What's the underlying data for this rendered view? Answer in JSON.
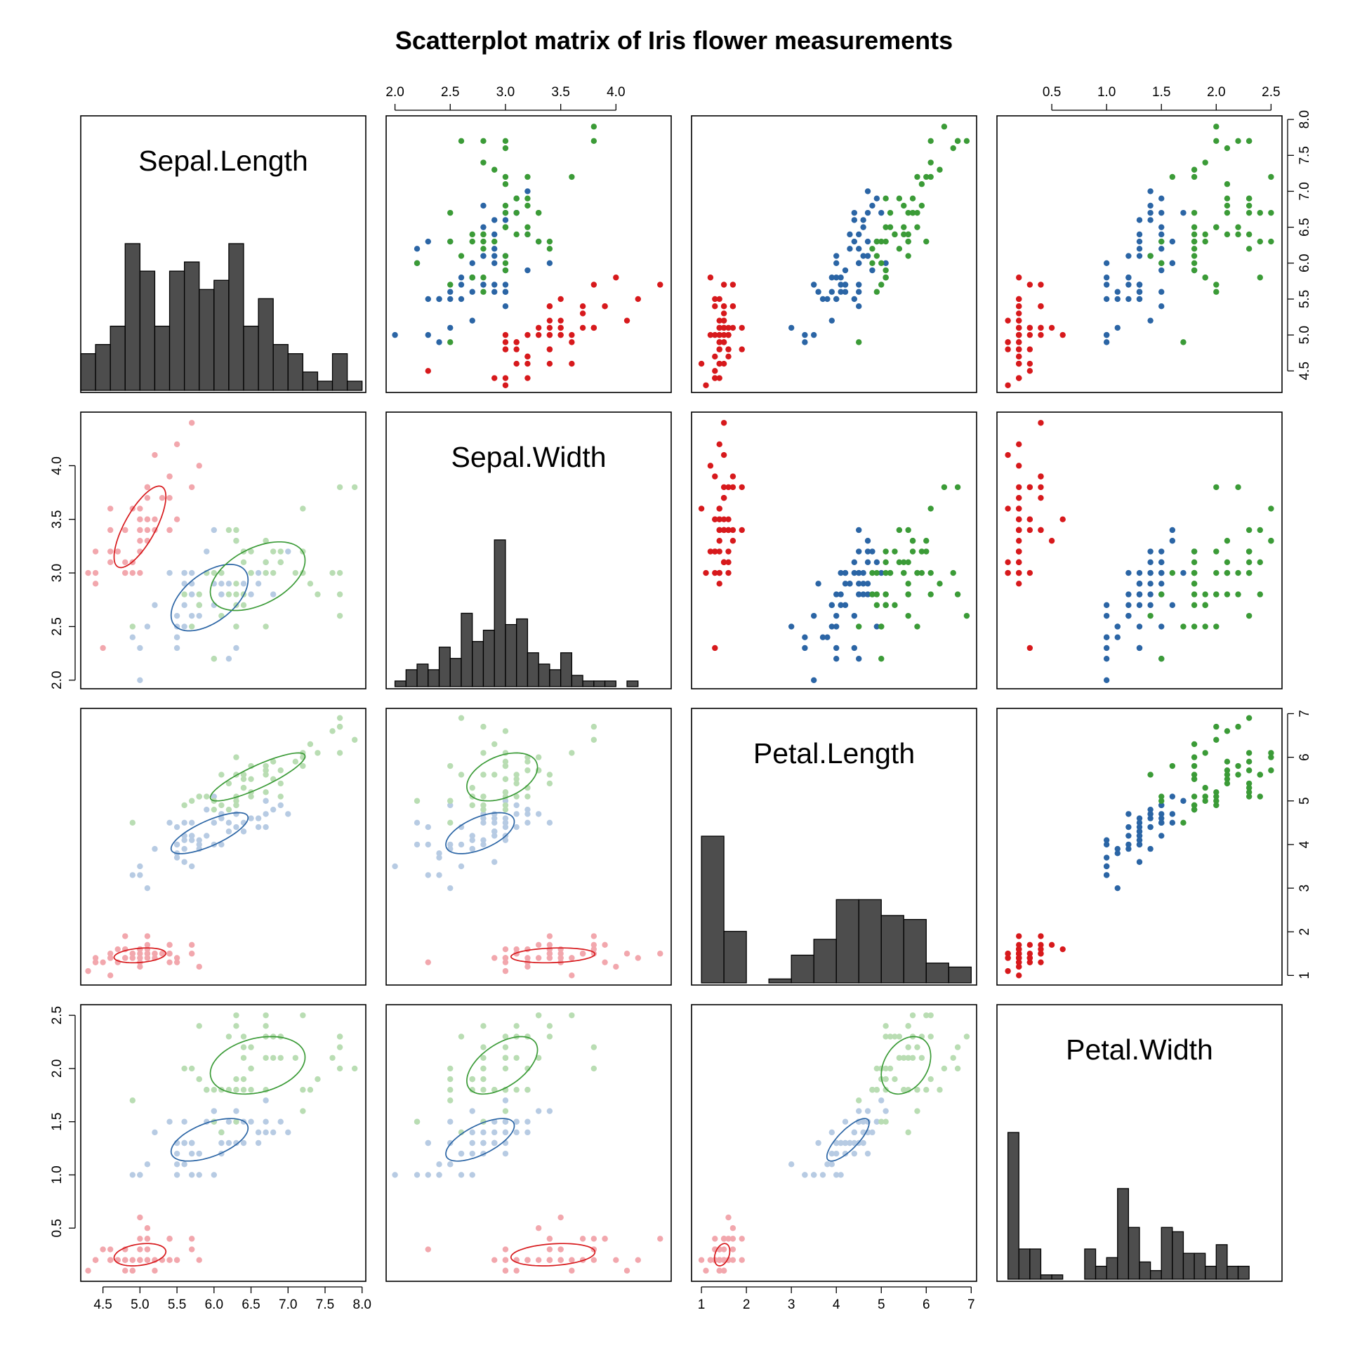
{
  "chart_data": {
    "type": "scatter",
    "title": "Scatterplot matrix of Iris flower measurements",
    "layout": "scatterplot-matrix 4x4: histograms on diagonal, colored scatter above diagonal, faded points with 68% ellipses below diagonal",
    "variables": [
      {
        "name": "Sepal.Length",
        "range": [
          4.2,
          8.05
        ],
        "ticks": [
          4.5,
          5.0,
          5.5,
          6.0,
          6.5,
          7.0,
          7.5,
          8.0
        ],
        "tick_labels": [
          "4.5",
          "5.0",
          "5.5",
          "6.0",
          "6.5",
          "7.0",
          "7.5",
          "8.0"
        ]
      },
      {
        "name": "Sepal.Width",
        "range": [
          1.92,
          4.5
        ],
        "ticks": [
          2.0,
          2.5,
          3.0,
          3.5,
          4.0
        ],
        "tick_labels": [
          "2.0",
          "2.5",
          "3.0",
          "3.5",
          "4.0"
        ]
      },
      {
        "name": "Petal.Length",
        "range": [
          0.78,
          7.12
        ],
        "ticks": [
          1,
          2,
          3,
          4,
          5,
          6,
          7
        ],
        "tick_labels": [
          "1",
          "2",
          "3",
          "4",
          "5",
          "6",
          "7"
        ]
      },
      {
        "name": "Petal.Width",
        "range": [
          0.0,
          2.6
        ],
        "ticks": [
          0.5,
          1.0,
          1.5,
          2.0,
          2.5
        ],
        "tick_labels": [
          "0.5",
          "1.0",
          "1.5",
          "2.0",
          "2.5"
        ]
      }
    ],
    "species": [
      {
        "key": "setosa",
        "color": "#d7191c",
        "faded_color": "#f2a7ad"
      },
      {
        "key": "versicolor",
        "color": "#2b65a5",
        "faded_color": "#b7cbe3"
      },
      {
        "key": "virginica",
        "color": "#3b9b37",
        "faded_color": "#b9ddb3"
      }
    ],
    "histograms": [
      {
        "variable": "Sepal.Length",
        "bin_start": 4.2,
        "bin_width": 0.2,
        "counts": [
          4,
          5,
          7,
          16,
          13,
          7,
          13,
          14,
          11,
          12,
          16,
          7,
          10,
          5,
          4,
          2,
          1,
          4,
          1
        ]
      },
      {
        "variable": "Sepal.Width",
        "bin_start": 2.0,
        "bin_width": 0.1,
        "counts": [
          1,
          3,
          4,
          3,
          7,
          5,
          13,
          8,
          10,
          26,
          11,
          12,
          6,
          4,
          3,
          6,
          2,
          1,
          1,
          1,
          0,
          1
        ]
      },
      {
        "variable": "Petal.Length",
        "bin_start": 1.0,
        "bin_width": 0.5,
        "counts": [
          37,
          13,
          0,
          1,
          7,
          11,
          21,
          21,
          17,
          16,
          5,
          4
        ]
      },
      {
        "variable": "Petal.Width",
        "bin_start": 0.1,
        "bin_width": 0.1,
        "counts": [
          34,
          7,
          7,
          1,
          1,
          0,
          0,
          7,
          3,
          5,
          21,
          12,
          4,
          2,
          12,
          11,
          6,
          6,
          3,
          8,
          3,
          3
        ]
      }
    ],
    "ellipses": [
      {
        "x": "Sepal.Length",
        "y": "Sepal.Width",
        "setosa": {
          "cx": 5.0,
          "cy": 3.43,
          "sx": 0.35,
          "sy": 0.38,
          "r": 0.74
        },
        "versicolor": {
          "cx": 5.94,
          "cy": 2.77,
          "sx": 0.52,
          "sy": 0.31,
          "r": 0.53
        },
        "virginica": {
          "cx": 6.59,
          "cy": 2.97,
          "sx": 0.64,
          "sy": 0.32,
          "r": 0.46
        }
      },
      {
        "x": "Sepal.Length",
        "y": "Petal.Length",
        "setosa": {
          "cx": 5.0,
          "cy": 1.46,
          "sx": 0.35,
          "sy": 0.17,
          "r": 0.27
        },
        "versicolor": {
          "cx": 5.94,
          "cy": 4.26,
          "sx": 0.52,
          "sy": 0.47,
          "r": 0.75
        },
        "virginica": {
          "cx": 6.59,
          "cy": 5.55,
          "sx": 0.64,
          "sy": 0.55,
          "r": 0.86
        }
      },
      {
        "x": "Sepal.Width",
        "y": "Petal.Length",
        "setosa": {
          "cx": 3.43,
          "cy": 1.46,
          "sx": 0.38,
          "sy": 0.17,
          "r": 0.18
        },
        "versicolor": {
          "cx": 2.77,
          "cy": 4.26,
          "sx": 0.31,
          "sy": 0.47,
          "r": 0.56
        },
        "virginica": {
          "cx": 2.97,
          "cy": 5.55,
          "sx": 0.32,
          "sy": 0.55,
          "r": 0.4
        }
      },
      {
        "x": "Sepal.Length",
        "y": "Petal.Width",
        "setosa": {
          "cx": 5.0,
          "cy": 0.25,
          "sx": 0.35,
          "sy": 0.105,
          "r": 0.28
        },
        "versicolor": {
          "cx": 5.94,
          "cy": 1.33,
          "sx": 0.52,
          "sy": 0.2,
          "r": 0.55
        },
        "virginica": {
          "cx": 6.59,
          "cy": 2.03,
          "sx": 0.64,
          "sy": 0.27,
          "r": 0.28
        }
      },
      {
        "x": "Sepal.Width",
        "y": "Petal.Width",
        "setosa": {
          "cx": 3.43,
          "cy": 0.25,
          "sx": 0.38,
          "sy": 0.105,
          "r": 0.23
        },
        "versicolor": {
          "cx": 2.77,
          "cy": 1.33,
          "sx": 0.31,
          "sy": 0.2,
          "r": 0.66
        },
        "virginica": {
          "cx": 2.97,
          "cy": 2.03,
          "sx": 0.32,
          "sy": 0.27,
          "r": 0.54
        }
      },
      {
        "x": "Petal.Length",
        "y": "Petal.Width",
        "setosa": {
          "cx": 1.46,
          "cy": 0.25,
          "sx": 0.17,
          "sy": 0.105,
          "r": 0.33
        },
        "versicolor": {
          "cx": 4.26,
          "cy": 1.33,
          "sx": 0.47,
          "sy": 0.2,
          "r": 0.79
        },
        "virginica": {
          "cx": 5.55,
          "cy": 2.03,
          "sx": 0.55,
          "sy": 0.27,
          "r": 0.32
        }
      }
    ],
    "points": {
      "fields": [
        "Sepal.Length",
        "Sepal.Width",
        "Petal.Length",
        "Petal.Width"
      ],
      "setosa": [
        [
          5.1,
          3.5,
          1.4,
          0.2
        ],
        [
          4.9,
          3.0,
          1.4,
          0.2
        ],
        [
          4.7,
          3.2,
          1.3,
          0.2
        ],
        [
          4.6,
          3.1,
          1.5,
          0.2
        ],
        [
          5.0,
          3.6,
          1.4,
          0.2
        ],
        [
          5.4,
          3.9,
          1.7,
          0.4
        ],
        [
          4.6,
          3.4,
          1.4,
          0.3
        ],
        [
          5.0,
          3.4,
          1.5,
          0.2
        ],
        [
          4.4,
          2.9,
          1.4,
          0.2
        ],
        [
          4.9,
          3.1,
          1.5,
          0.1
        ],
        [
          5.4,
          3.7,
          1.5,
          0.2
        ],
        [
          4.8,
          3.4,
          1.6,
          0.2
        ],
        [
          4.8,
          3.0,
          1.4,
          0.1
        ],
        [
          4.3,
          3.0,
          1.1,
          0.1
        ],
        [
          5.8,
          4.0,
          1.2,
          0.2
        ],
        [
          5.7,
          4.4,
          1.5,
          0.4
        ],
        [
          5.4,
          3.9,
          1.3,
          0.4
        ],
        [
          5.1,
          3.5,
          1.4,
          0.3
        ],
        [
          5.7,
          3.8,
          1.7,
          0.3
        ],
        [
          5.1,
          3.8,
          1.5,
          0.3
        ],
        [
          5.4,
          3.4,
          1.7,
          0.2
        ],
        [
          5.1,
          3.7,
          1.5,
          0.4
        ],
        [
          4.6,
          3.6,
          1.0,
          0.2
        ],
        [
          5.1,
          3.3,
          1.7,
          0.5
        ],
        [
          4.8,
          3.4,
          1.9,
          0.2
        ],
        [
          5.0,
          3.0,
          1.6,
          0.2
        ],
        [
          5.0,
          3.4,
          1.6,
          0.4
        ],
        [
          5.2,
          3.5,
          1.5,
          0.2
        ],
        [
          5.2,
          3.4,
          1.4,
          0.2
        ],
        [
          4.7,
          3.2,
          1.6,
          0.2
        ],
        [
          4.8,
          3.1,
          1.6,
          0.2
        ],
        [
          5.4,
          3.4,
          1.5,
          0.4
        ],
        [
          5.2,
          4.1,
          1.5,
          0.1
        ],
        [
          5.5,
          4.2,
          1.4,
          0.2
        ],
        [
          4.9,
          3.1,
          1.5,
          0.2
        ],
        [
          5.0,
          3.2,
          1.2,
          0.2
        ],
        [
          5.5,
          3.5,
          1.3,
          0.2
        ],
        [
          4.9,
          3.6,
          1.4,
          0.1
        ],
        [
          4.4,
          3.0,
          1.3,
          0.2
        ],
        [
          5.1,
          3.4,
          1.5,
          0.2
        ],
        [
          5.0,
          3.5,
          1.3,
          0.3
        ],
        [
          4.5,
          2.3,
          1.3,
          0.3
        ],
        [
          4.4,
          3.2,
          1.3,
          0.2
        ],
        [
          5.0,
          3.5,
          1.6,
          0.6
        ],
        [
          5.1,
          3.8,
          1.9,
          0.4
        ],
        [
          4.8,
          3.0,
          1.4,
          0.3
        ],
        [
          5.1,
          3.8,
          1.6,
          0.2
        ],
        [
          4.6,
          3.2,
          1.4,
          0.2
        ],
        [
          5.3,
          3.7,
          1.5,
          0.2
        ],
        [
          5.0,
          3.3,
          1.4,
          0.2
        ]
      ],
      "versicolor": [
        [
          7.0,
          3.2,
          4.7,
          1.4
        ],
        [
          6.4,
          3.2,
          4.5,
          1.5
        ],
        [
          6.9,
          3.1,
          4.9,
          1.5
        ],
        [
          5.5,
          2.3,
          4.0,
          1.3
        ],
        [
          6.5,
          2.8,
          4.6,
          1.5
        ],
        [
          5.7,
          2.8,
          4.5,
          1.3
        ],
        [
          6.3,
          3.3,
          4.7,
          1.6
        ],
        [
          4.9,
          2.4,
          3.3,
          1.0
        ],
        [
          6.6,
          2.9,
          4.6,
          1.3
        ],
        [
          5.2,
          2.7,
          3.9,
          1.4
        ],
        [
          5.0,
          2.0,
          3.5,
          1.0
        ],
        [
          5.9,
          3.0,
          4.2,
          1.5
        ],
        [
          6.0,
          2.2,
          4.0,
          1.0
        ],
        [
          6.1,
          2.9,
          4.7,
          1.4
        ],
        [
          5.6,
          2.9,
          3.6,
          1.3
        ],
        [
          6.7,
          3.1,
          4.4,
          1.4
        ],
        [
          5.6,
          3.0,
          4.5,
          1.5
        ],
        [
          5.8,
          2.7,
          4.1,
          1.0
        ],
        [
          6.2,
          2.2,
          4.5,
          1.5
        ],
        [
          5.6,
          2.5,
          3.9,
          1.1
        ],
        [
          5.9,
          3.2,
          4.8,
          1.8
        ],
        [
          6.1,
          2.8,
          4.0,
          1.3
        ],
        [
          6.3,
          2.5,
          4.9,
          1.5
        ],
        [
          6.1,
          2.8,
          4.7,
          1.2
        ],
        [
          6.4,
          2.9,
          4.3,
          1.3
        ],
        [
          6.6,
          3.0,
          4.4,
          1.4
        ],
        [
          6.8,
          2.8,
          4.8,
          1.4
        ],
        [
          6.7,
          3.0,
          5.0,
          1.7
        ],
        [
          6.0,
          2.9,
          4.5,
          1.5
        ],
        [
          5.7,
          2.6,
          3.5,
          1.0
        ],
        [
          5.5,
          2.4,
          3.8,
          1.1
        ],
        [
          5.5,
          2.4,
          3.7,
          1.0
        ],
        [
          5.8,
          2.7,
          3.9,
          1.2
        ],
        [
          6.0,
          2.7,
          5.1,
          1.6
        ],
        [
          5.4,
          3.0,
          4.5,
          1.5
        ],
        [
          6.0,
          3.4,
          4.5,
          1.6
        ],
        [
          6.7,
          3.1,
          4.7,
          1.5
        ],
        [
          6.3,
          2.3,
          4.4,
          1.3
        ],
        [
          5.6,
          3.0,
          4.1,
          1.3
        ],
        [
          5.5,
          2.5,
          4.0,
          1.3
        ],
        [
          5.5,
          2.6,
          4.4,
          1.2
        ],
        [
          6.1,
          3.0,
          4.6,
          1.4
        ],
        [
          5.8,
          2.6,
          4.0,
          1.2
        ],
        [
          5.0,
          2.3,
          3.3,
          1.0
        ],
        [
          5.6,
          2.7,
          4.2,
          1.3
        ],
        [
          5.7,
          3.0,
          4.2,
          1.2
        ],
        [
          5.7,
          2.9,
          4.2,
          1.3
        ],
        [
          6.2,
          2.9,
          4.3,
          1.3
        ],
        [
          5.1,
          2.5,
          3.0,
          1.1
        ],
        [
          5.7,
          2.8,
          4.1,
          1.3
        ]
      ],
      "virginica": [
        [
          6.3,
          3.3,
          6.0,
          2.5
        ],
        [
          5.8,
          2.7,
          5.1,
          1.9
        ],
        [
          7.1,
          3.0,
          5.9,
          2.1
        ],
        [
          6.3,
          2.9,
          5.6,
          1.8
        ],
        [
          6.5,
          3.0,
          5.8,
          2.2
        ],
        [
          7.6,
          3.0,
          6.6,
          2.1
        ],
        [
          4.9,
          2.5,
          4.5,
          1.7
        ],
        [
          7.3,
          2.9,
          6.3,
          1.8
        ],
        [
          6.7,
          2.5,
          5.8,
          1.8
        ],
        [
          7.2,
          3.6,
          6.1,
          2.5
        ],
        [
          6.5,
          3.2,
          5.1,
          2.0
        ],
        [
          6.4,
          2.7,
          5.3,
          1.9
        ],
        [
          6.8,
          3.0,
          5.5,
          2.1
        ],
        [
          5.7,
          2.5,
          5.0,
          2.0
        ],
        [
          5.8,
          2.8,
          5.1,
          2.4
        ],
        [
          6.4,
          3.2,
          5.3,
          2.3
        ],
        [
          6.5,
          3.0,
          5.5,
          1.8
        ],
        [
          7.7,
          3.8,
          6.7,
          2.2
        ],
        [
          7.7,
          2.6,
          6.9,
          2.3
        ],
        [
          6.0,
          2.2,
          5.0,
          1.5
        ],
        [
          6.9,
          3.2,
          5.7,
          2.3
        ],
        [
          5.6,
          2.8,
          4.9,
          2.0
        ],
        [
          7.7,
          2.8,
          6.7,
          2.0
        ],
        [
          6.3,
          2.7,
          4.9,
          1.8
        ],
        [
          6.7,
          3.3,
          5.7,
          2.1
        ],
        [
          7.2,
          3.2,
          6.0,
          1.8
        ],
        [
          6.2,
          2.8,
          4.8,
          1.8
        ],
        [
          6.1,
          3.0,
          4.9,
          1.8
        ],
        [
          6.4,
          2.8,
          5.6,
          2.1
        ],
        [
          7.2,
          3.0,
          5.8,
          1.6
        ],
        [
          7.4,
          2.8,
          6.1,
          1.9
        ],
        [
          7.9,
          3.8,
          6.4,
          2.0
        ],
        [
          6.4,
          2.8,
          5.6,
          2.2
        ],
        [
          6.3,
          2.8,
          5.1,
          1.5
        ],
        [
          6.1,
          2.6,
          5.6,
          1.4
        ],
        [
          7.7,
          3.0,
          6.1,
          2.3
        ],
        [
          6.3,
          3.4,
          5.6,
          2.4
        ],
        [
          6.4,
          3.1,
          5.5,
          1.8
        ],
        [
          6.0,
          3.0,
          4.8,
          1.8
        ],
        [
          6.9,
          3.1,
          5.4,
          2.1
        ],
        [
          6.7,
          3.1,
          5.6,
          2.4
        ],
        [
          6.9,
          3.1,
          5.1,
          2.3
        ],
        [
          5.8,
          2.7,
          5.1,
          1.9
        ],
        [
          6.8,
          3.2,
          5.9,
          2.3
        ],
        [
          6.7,
          3.3,
          5.7,
          2.5
        ],
        [
          6.7,
          3.0,
          5.2,
          2.3
        ],
        [
          6.3,
          2.5,
          5.0,
          1.9
        ],
        [
          6.5,
          3.0,
          5.2,
          2.0
        ],
        [
          6.2,
          3.4,
          5.4,
          2.3
        ],
        [
          5.9,
          3.0,
          5.1,
          1.8
        ]
      ]
    }
  }
}
